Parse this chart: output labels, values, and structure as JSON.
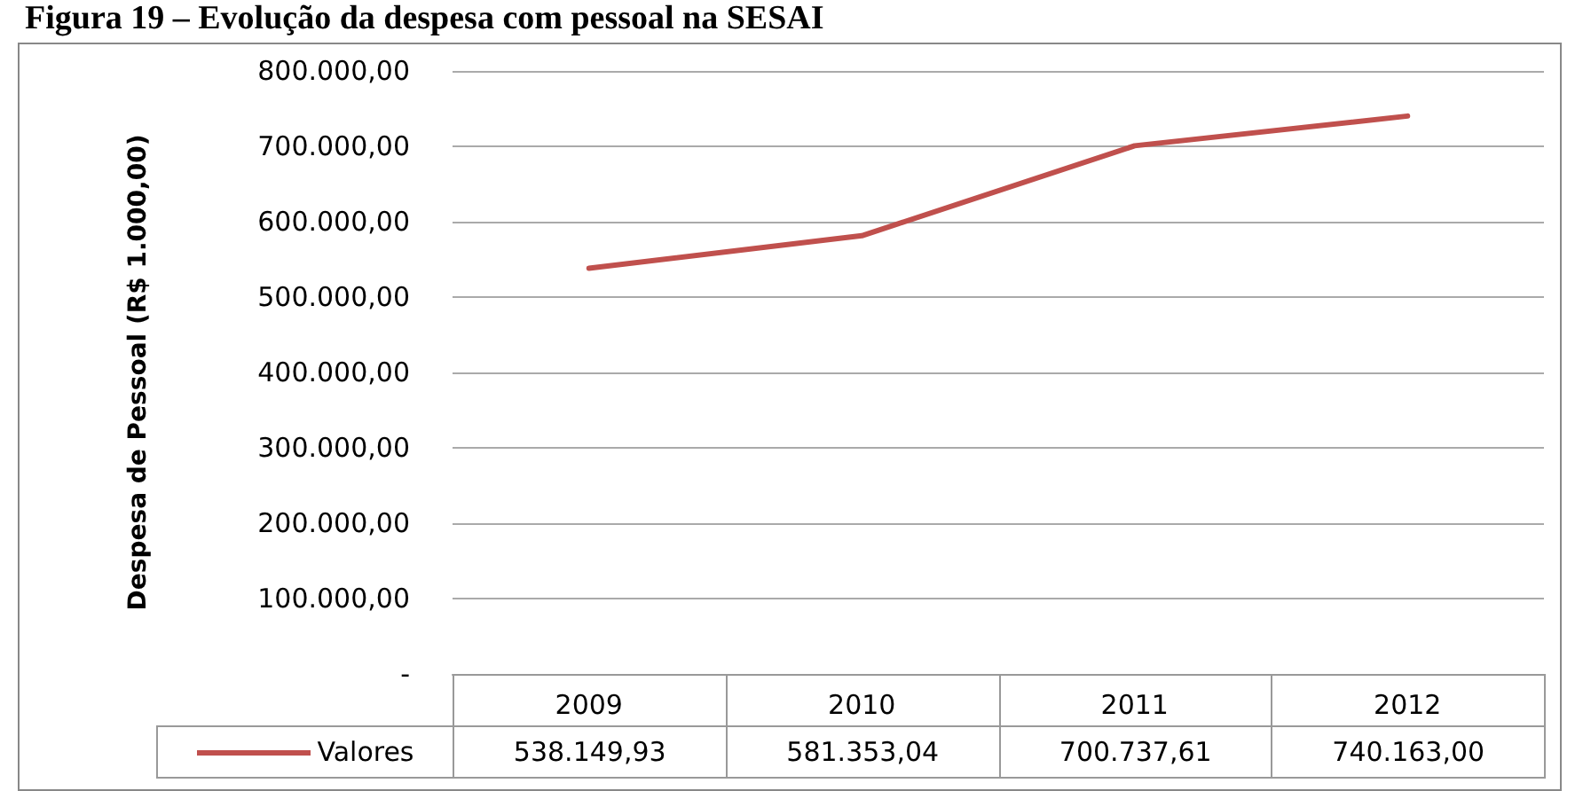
{
  "chart_data": {
    "type": "line",
    "title": "Figura 19 – Evolução da despesa com pessoal na SESAI",
    "ylabel": "Despesa de Pessoal (R$ 1.000,00)",
    "categories": [
      "2009",
      "2010",
      "2011",
      "2012"
    ],
    "series": [
      {
        "name": "Valores",
        "color": "#c0504d",
        "values": [
          538149.93,
          581353.04,
          700737.61,
          740163.0
        ],
        "value_labels": [
          "538.149,93",
          "581.353,04",
          "700.737,61",
          "740.163,00"
        ]
      }
    ],
    "ylim": [
      0,
      800000
    ],
    "yticks": [
      {
        "value": 0,
        "label": "-"
      },
      {
        "value": 100000,
        "label": "100.000,00"
      },
      {
        "value": 200000,
        "label": "200.000,00"
      },
      {
        "value": 300000,
        "label": "300.000,00"
      },
      {
        "value": 400000,
        "label": "400.000,00"
      },
      {
        "value": 500000,
        "label": "500.000,00"
      },
      {
        "value": 600000,
        "label": "600.000,00"
      },
      {
        "value": 700000,
        "label": "700.000,00"
      },
      {
        "value": 800000,
        "label": "800.000,00"
      }
    ],
    "grid": "y",
    "legend": "bottom",
    "marker": "none",
    "line_style": "solid"
  }
}
